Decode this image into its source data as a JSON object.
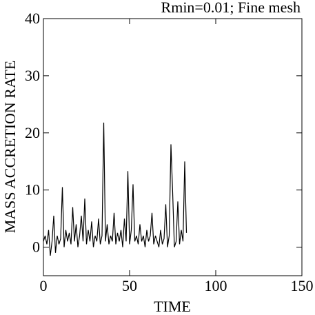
{
  "chart_data": {
    "type": "line",
    "title": "Rmin=0.01; Fine mesh",
    "x_label": "TIME",
    "y_label": "MASS ACCRETION RATE",
    "xlim": [
      0,
      150
    ],
    "xticks": [
      0,
      50,
      100,
      150
    ],
    "ylim": [
      -5,
      40
    ],
    "yticks": [
      0,
      10,
      20,
      30,
      40
    ],
    "series": [
      {
        "color": "#000000",
        "x": [
          0,
          1,
          2,
          3,
          4,
          5,
          6,
          7,
          8,
          9,
          10,
          11,
          12,
          13,
          14,
          15,
          16,
          17,
          18,
          19,
          20,
          21,
          22,
          23,
          24,
          25,
          26,
          27,
          28,
          29,
          30,
          31,
          32,
          33,
          34,
          35,
          36,
          37,
          38,
          39,
          40,
          41,
          42,
          43,
          44,
          45,
          46,
          47,
          48,
          49,
          50,
          51,
          52,
          53,
          54,
          55,
          56,
          57,
          58,
          59,
          60,
          61,
          62,
          63,
          64,
          65,
          66,
          67,
          68,
          69,
          70,
          71,
          72,
          73,
          74,
          75,
          76,
          77,
          78,
          79,
          80,
          81,
          82,
          83
        ],
        "values": [
          1,
          2,
          0.5,
          3,
          -1.5,
          1,
          5.5,
          -1,
          2,
          0.5,
          1.5,
          10.5,
          0,
          3,
          1,
          2.5,
          0.5,
          7,
          1,
          4,
          0,
          2,
          5.5,
          1,
          8.5,
          0.5,
          3,
          1,
          4.5,
          0,
          2,
          1,
          5,
          0.5,
          2,
          21.8,
          1,
          4,
          0.5,
          2,
          1,
          6,
          0.5,
          2.5,
          1,
          3,
          0,
          5,
          1,
          13.3,
          0.5,
          3,
          11,
          1,
          2,
          0.5,
          4,
          1,
          2,
          0,
          3,
          1,
          2,
          6,
          0.5,
          2,
          1,
          0,
          3,
          0.5,
          1.5,
          7.5,
          0,
          2,
          18,
          9.5,
          0,
          1,
          8,
          0.5,
          3,
          1,
          15,
          2.5
        ]
      }
    ]
  }
}
